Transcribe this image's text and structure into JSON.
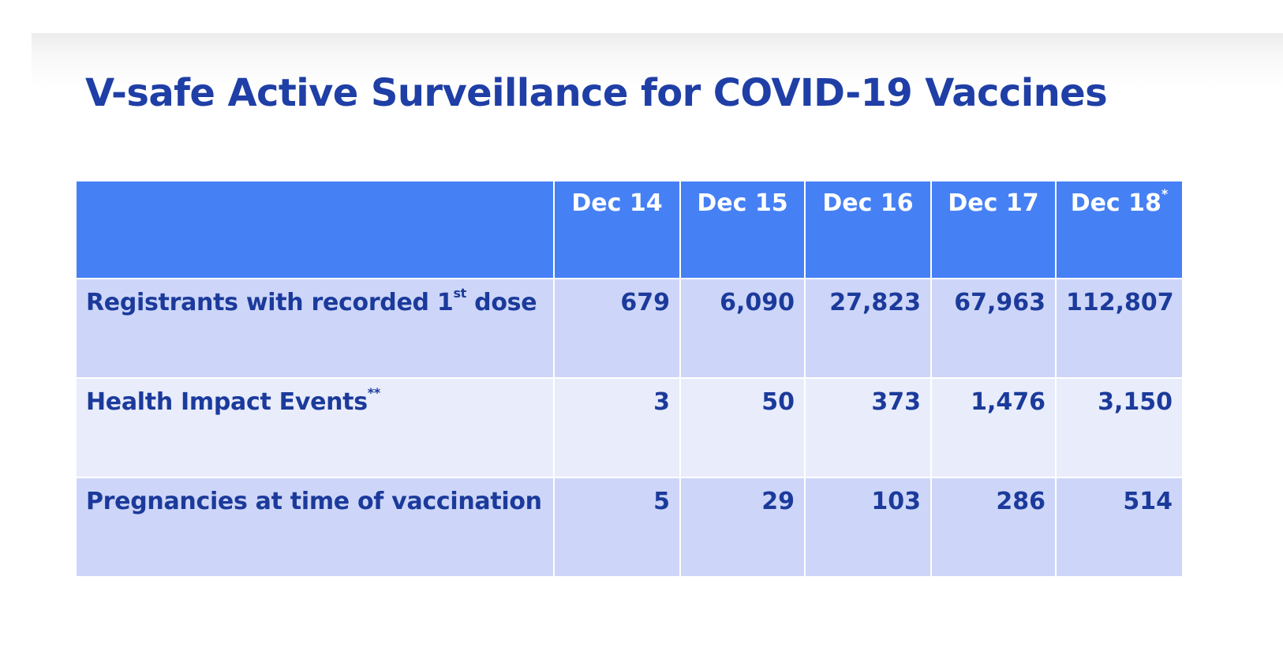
{
  "slide": {
    "title": "V-safe Active Surveillance for COVID-19 Vaccines"
  },
  "table": {
    "corner_header": "",
    "columns": [
      {
        "label": "Dec 14",
        "mark": ""
      },
      {
        "label": "Dec 15",
        "mark": ""
      },
      {
        "label": "Dec 16",
        "mark": ""
      },
      {
        "label": "Dec 17",
        "mark": ""
      },
      {
        "label": "Dec 18",
        "mark": "*"
      }
    ],
    "rows": [
      {
        "label_pre": "Registrants with recorded 1",
        "label_sup": "st",
        "label_post": " dose",
        "values": [
          "679",
          "6,090",
          "27,823",
          "67,963",
          "112,807"
        ]
      },
      {
        "label_pre": "Health Impact Events",
        "label_sup": "**",
        "label_post": "",
        "values": [
          "3",
          "50",
          "373",
          "1,476",
          "3,150"
        ]
      },
      {
        "label_pre": "Pregnancies at time of vaccination",
        "label_sup": "",
        "label_post": "",
        "values": [
          "5",
          "29",
          "103",
          "286",
          "514"
        ]
      }
    ]
  },
  "colors": {
    "title": "#1f3fa6",
    "header_fill": "#4680f5",
    "row_fill_dark": "#cdd6f8",
    "row_fill_light": "#e8ecfb",
    "body_text": "#1b3a9b"
  }
}
